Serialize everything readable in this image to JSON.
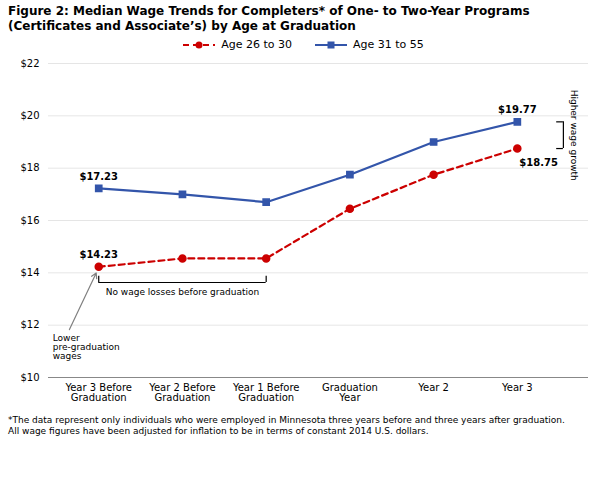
{
  "chart_data": {
    "type": "line",
    "title": "Figure 2: Median Wage Trends for Completers* of One- to Two-Year Programs",
    "subtitle": "(Certificates and Associate’s) by Age at Graduation",
    "categories": [
      "Year 3 Before\nGraduation",
      "Year 2 Before\nGraduation",
      "Year 1 Before\nGraduation",
      "Graduation\nYear",
      "Year 2",
      "Year 3"
    ],
    "series": [
      {
        "name": "Age 26 to 30",
        "color": "#cc0000",
        "marker": "circle",
        "line_style": "dashed",
        "values": [
          14.23,
          14.55,
          14.55,
          16.45,
          17.75,
          18.75
        ],
        "value_labels": [
          "$14.23",
          null,
          null,
          null,
          null,
          "$18.75"
        ]
      },
      {
        "name": "Age 31 to 55",
        "color": "#3355aa",
        "marker": "square",
        "line_style": "solid",
        "values": [
          17.23,
          17.0,
          16.7,
          17.75,
          19.0,
          19.77
        ],
        "value_labels": [
          "$17.23",
          null,
          null,
          null,
          null,
          "$19.77"
        ]
      }
    ],
    "ylim": [
      10,
      22
    ],
    "yticks": [
      {
        "value": 10,
        "label": "$10"
      },
      {
        "value": 12,
        "label": "$12"
      },
      {
        "value": 14,
        "label": "$14"
      },
      {
        "value": 16,
        "label": "$16"
      },
      {
        "value": 18,
        "label": "$18"
      },
      {
        "value": 20,
        "label": "$20"
      },
      {
        "value": 22,
        "label": "$22"
      }
    ],
    "grid": true,
    "legend": "top",
    "data_labels": true,
    "annotations": [
      "Lower\npre-graduation\nwages",
      "No wage losses before graduation",
      "Higher wage growth"
    ],
    "footnote": "*The data represent only individuals who were employed in Minnesota three years before and three years after graduation.\nAll wage figures have been adjusted for inflation to be in terms of constant 2014 U.S. dollars."
  }
}
